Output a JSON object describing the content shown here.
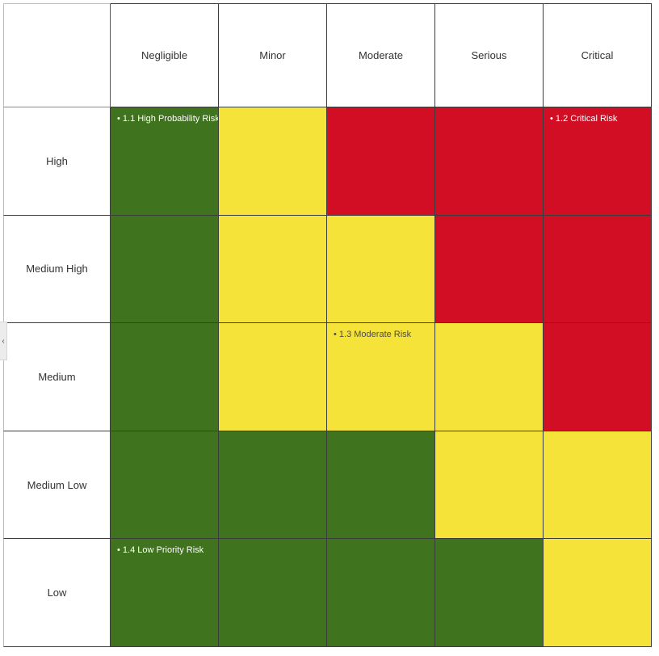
{
  "matrix": {
    "columns": [
      "Negligible",
      "Minor",
      "Moderate",
      "Serious",
      "Critical"
    ],
    "rows": [
      "High",
      "Medium High",
      "Medium",
      "Medium Low",
      "Low"
    ],
    "cells": [
      [
        "green",
        "yellow",
        "red",
        "red",
        "red"
      ],
      [
        "green",
        "yellow",
        "yellow",
        "red",
        "red"
      ],
      [
        "green",
        "yellow",
        "yellow",
        "yellow",
        "red"
      ],
      [
        "green",
        "green",
        "green",
        "yellow",
        "yellow"
      ],
      [
        "green",
        "green",
        "green",
        "green",
        "yellow"
      ]
    ],
    "colors": {
      "green": "#40731E",
      "yellow": "#F6E339",
      "red": "#D10E24"
    },
    "bullet": "•",
    "risks": [
      {
        "label": "1.1 High Probability Risk",
        "row": 0,
        "col": 0
      },
      {
        "label": "1.2 Critical Risk",
        "row": 0,
        "col": 4
      },
      {
        "label": "1.3 Moderate Risk",
        "row": 2,
        "col": 2
      },
      {
        "label": "1.4 Low Priority Risk",
        "row": 4,
        "col": 0
      }
    ]
  },
  "panel_toggle": {
    "chevron": "‹"
  }
}
